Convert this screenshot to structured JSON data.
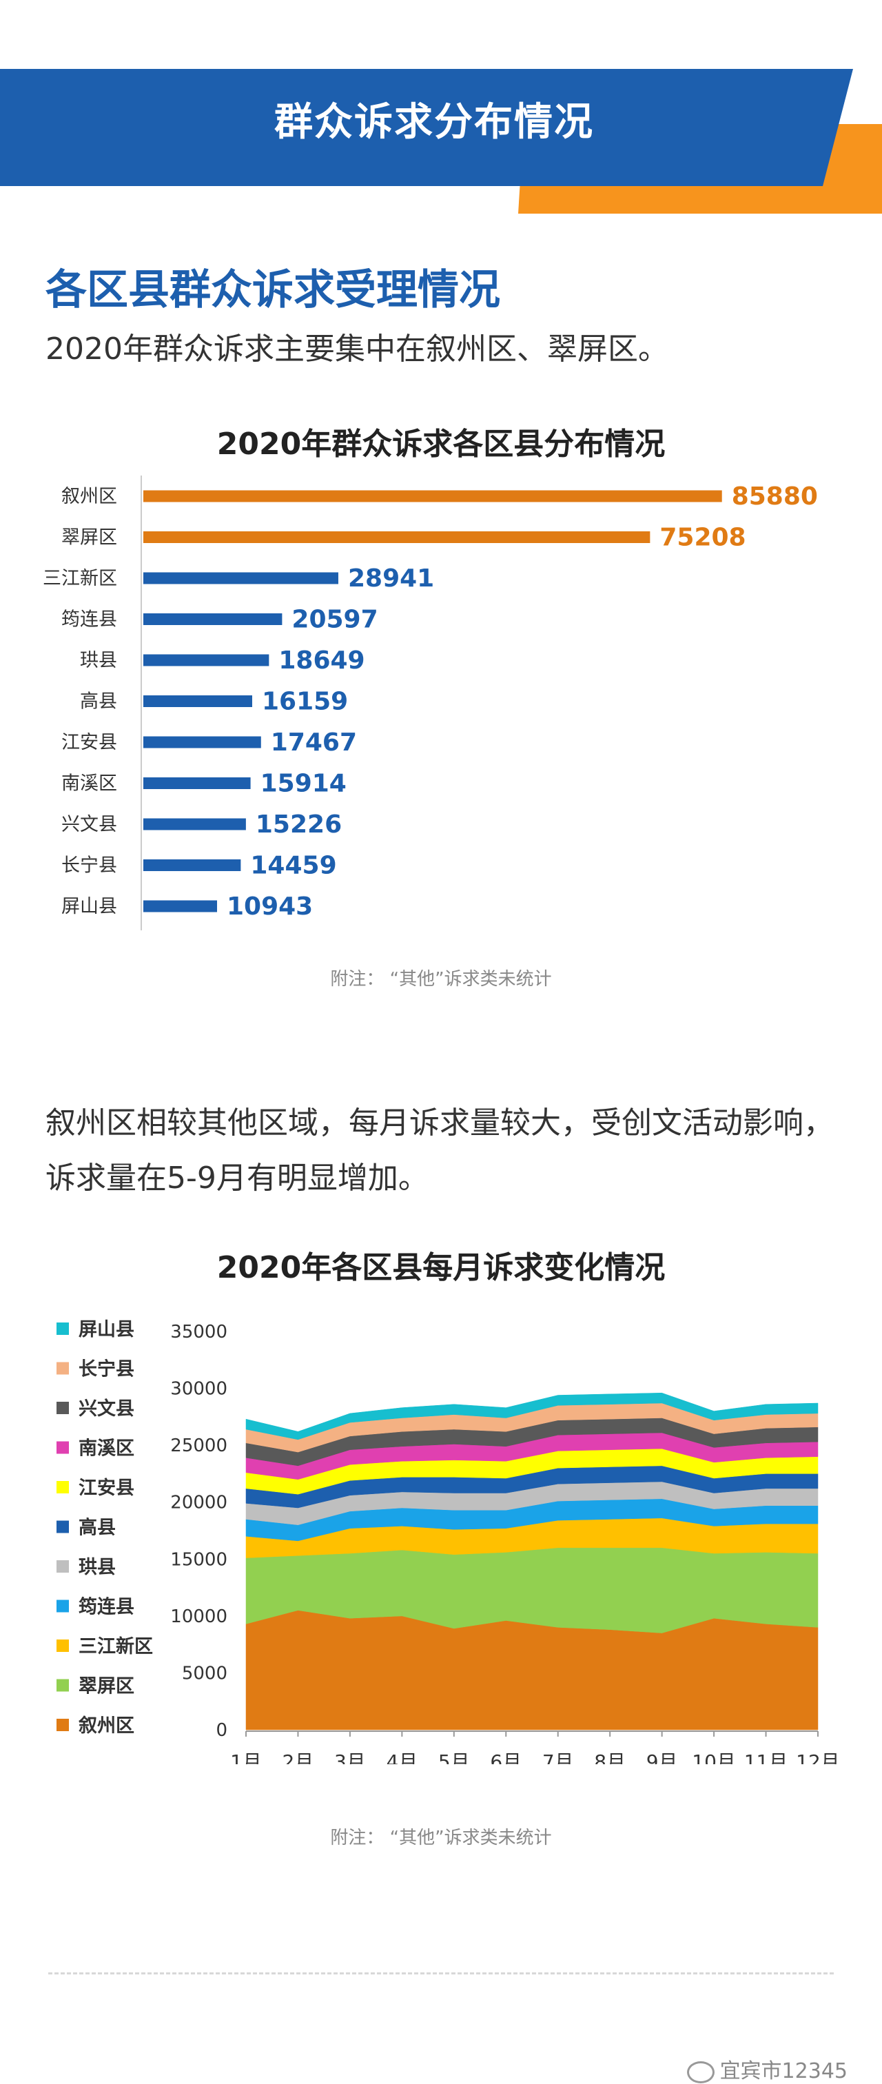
{
  "banner": {
    "title": "群众诉求分布情况"
  },
  "section1": {
    "heading": "各区县群众诉求受理情况",
    "desc": "2020年群众诉求主要集中在叙州区、翠屏区。"
  },
  "note": "附注：  “其他”诉求类未统计",
  "section2": {
    "paragraph": "叙州区相较其他区域，每月诉求量较大，受创文活动影响，诉求量在5-9月有明显增加。"
  },
  "watermark": "宜宾市12345",
  "colors": {
    "blue": "#1d5fae",
    "orange": "#e07b14"
  },
  "chart_data": [
    {
      "type": "bar",
      "orientation": "horizontal",
      "title": "2020年群众诉求各区县分布情况",
      "categories": [
        "叙州区",
        "翠屏区",
        "三江新区",
        "筠连县",
        "珙县",
        "高县",
        "江安县",
        "南溪区",
        "兴文县",
        "长宁县",
        "屏山县"
      ],
      "values": [
        85880,
        75208,
        28941,
        20597,
        18649,
        16159,
        17467,
        15914,
        15226,
        14459,
        10943
      ],
      "bar_colors": [
        "#e07b14",
        "#e07b14",
        "#1d5fae",
        "#1d5fae",
        "#1d5fae",
        "#1d5fae",
        "#1d5fae",
        "#1d5fae",
        "#1d5fae",
        "#1d5fae",
        "#1d5fae"
      ],
      "xlim": [
        0,
        90000
      ]
    },
    {
      "type": "area",
      "stacked": true,
      "title": "2020年各区县每月诉求变化情况",
      "x": [
        "1月",
        "2月",
        "3月",
        "4月",
        "5月",
        "6月",
        "7月",
        "8月",
        "9月",
        "10月",
        "11月",
        "12月"
      ],
      "ylim": [
        0,
        35000
      ],
      "yticks": [
        0,
        5000,
        10000,
        15000,
        20000,
        25000,
        30000,
        35000
      ],
      "legend_position": "left",
      "series": [
        {
          "name": "叙州区",
          "color": "#e07b14",
          "values": [
            9300,
            10500,
            9800,
            10000,
            8900,
            9600,
            9000,
            8800,
            8500,
            9800,
            9300,
            9000
          ]
        },
        {
          "name": "翠屏区",
          "color": "#92d050",
          "values": [
            5800,
            4800,
            5700,
            5800,
            6500,
            6000,
            7000,
            7200,
            7500,
            5700,
            6300,
            6500
          ]
        },
        {
          "name": "三江新区",
          "color": "#ffc000",
          "values": [
            1900,
            1300,
            2200,
            2100,
            2200,
            2100,
            2400,
            2500,
            2600,
            2400,
            2500,
            2600
          ]
        },
        {
          "name": "筠连县",
          "color": "#1aa3e8",
          "values": [
            1500,
            1400,
            1500,
            1600,
            1700,
            1600,
            1700,
            1700,
            1700,
            1500,
            1600,
            1600
          ]
        },
        {
          "name": "珙县",
          "color": "#bfbfbf",
          "values": [
            1400,
            1500,
            1400,
            1400,
            1500,
            1500,
            1500,
            1500,
            1500,
            1400,
            1500,
            1500
          ]
        },
        {
          "name": "高县",
          "color": "#1d5fae",
          "values": [
            1300,
            1200,
            1300,
            1300,
            1400,
            1300,
            1400,
            1400,
            1400,
            1300,
            1300,
            1300
          ]
        },
        {
          "name": "江安县",
          "color": "#ffff00",
          "values": [
            1400,
            1300,
            1400,
            1400,
            1500,
            1500,
            1500,
            1500,
            1500,
            1400,
            1400,
            1500
          ]
        },
        {
          "name": "南溪区",
          "color": "#e040b0",
          "values": [
            1300,
            1200,
            1300,
            1300,
            1400,
            1300,
            1400,
            1400,
            1400,
            1300,
            1300,
            1300
          ]
        },
        {
          "name": "兴文县",
          "color": "#595959",
          "values": [
            1300,
            1200,
            1200,
            1300,
            1300,
            1300,
            1300,
            1300,
            1300,
            1200,
            1300,
            1300
          ]
        },
        {
          "name": "长宁县",
          "color": "#f4b183",
          "values": [
            1200,
            1100,
            1200,
            1200,
            1300,
            1200,
            1300,
            1300,
            1300,
            1200,
            1200,
            1200
          ]
        },
        {
          "name": "屏山县",
          "color": "#17becf",
          "values": [
            900,
            700,
            800,
            900,
            900,
            900,
            900,
            900,
            900,
            800,
            900,
            900
          ]
        }
      ]
    }
  ]
}
